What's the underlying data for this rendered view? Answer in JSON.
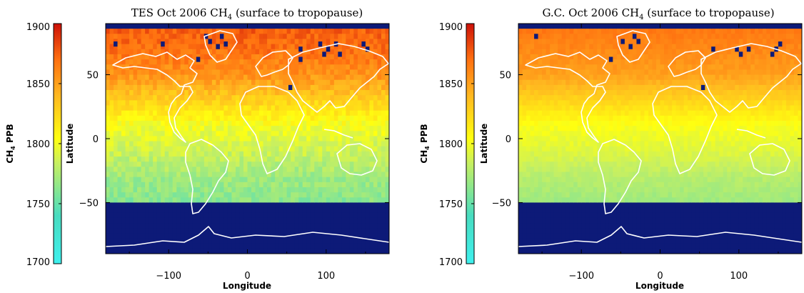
{
  "chart_data": [
    {
      "type": "heatmap",
      "title": "TES Oct 2006 CH4 (surface to tropopause)",
      "title_main": "TES Oct 2006 CH",
      "title_sub": "4",
      "title_rest": " (surface to tropopause)",
      "xlabel": "Longitude",
      "ylabel": "Latitude",
      "xlim": [
        -180,
        180
      ],
      "ylim": [
        -90,
        90
      ],
      "xticks": [
        -100,
        0,
        100
      ],
      "yticks": [
        -50,
        0,
        50
      ],
      "colorbar": {
        "label_main": "CH",
        "label_sub": "4",
        "label_rest": " PPB",
        "range": [
          1700,
          1900
        ],
        "ticks": [
          1700,
          1750,
          1800,
          1850,
          1900
        ]
      },
      "masked_below_lat": -50,
      "masked_color": "#0d1a78",
      "zonal_mean": {
        "lat": [
          -50,
          -30,
          -10,
          10,
          30,
          50,
          70,
          84
        ],
        "ppb": [
          1762,
          1770,
          1786,
          1800,
          1828,
          1856,
          1870,
          1875
        ]
      },
      "noise_ppb": 9,
      "masked_cells": [
        [
          -170,
          74
        ],
        [
          -110,
          74
        ],
        [
          -65,
          62
        ],
        [
          -55,
          80
        ],
        [
          -50,
          76
        ],
        [
          -40,
          72
        ],
        [
          -35,
          80
        ],
        [
          -30,
          74
        ],
        [
          52,
          40
        ],
        [
          65,
          70
        ],
        [
          90,
          74
        ],
        [
          100,
          70
        ],
        [
          110,
          74
        ],
        [
          115,
          66
        ],
        [
          145,
          74
        ],
        [
          150,
          70
        ],
        [
          95,
          66
        ],
        [
          65,
          62
        ]
      ]
    },
    {
      "type": "heatmap",
      "title": "G.C. Oct 2006 CH4 (surface to tropopause)",
      "title_main": "G.C. Oct 2006 CH",
      "title_sub": "4",
      "title_rest": " (surface to tropopause)",
      "xlabel": "Longitude",
      "ylabel": "Latitude",
      "xlim": [
        -180,
        180
      ],
      "ylim": [
        -90,
        90
      ],
      "xticks": [
        -100,
        0,
        100
      ],
      "yticks": [
        -50,
        0,
        50
      ],
      "colorbar": {
        "label_main": "CH",
        "label_sub": "4",
        "label_rest": " PPB",
        "range": [
          1700,
          1900
        ],
        "ticks": [
          1700,
          1750,
          1800,
          1850,
          1900
        ]
      },
      "masked_below_lat": -50,
      "masked_color": "#0d1a78",
      "zonal_mean": {
        "lat": [
          -50,
          -30,
          -10,
          10,
          30,
          50,
          70,
          84
        ],
        "ppb": [
          1770,
          1778,
          1792,
          1802,
          1826,
          1850,
          1860,
          1866
        ]
      },
      "noise_ppb": 4,
      "masked_cells": [
        [
          -160,
          80
        ],
        [
          -65,
          62
        ],
        [
          -50,
          76
        ],
        [
          -40,
          72
        ],
        [
          -35,
          80
        ],
        [
          -30,
          76
        ],
        [
          52,
          40
        ],
        [
          65,
          70
        ],
        [
          95,
          70
        ],
        [
          110,
          70
        ],
        [
          100,
          66
        ],
        [
          145,
          70
        ],
        [
          150,
          74
        ],
        [
          140,
          66
        ]
      ]
    }
  ]
}
